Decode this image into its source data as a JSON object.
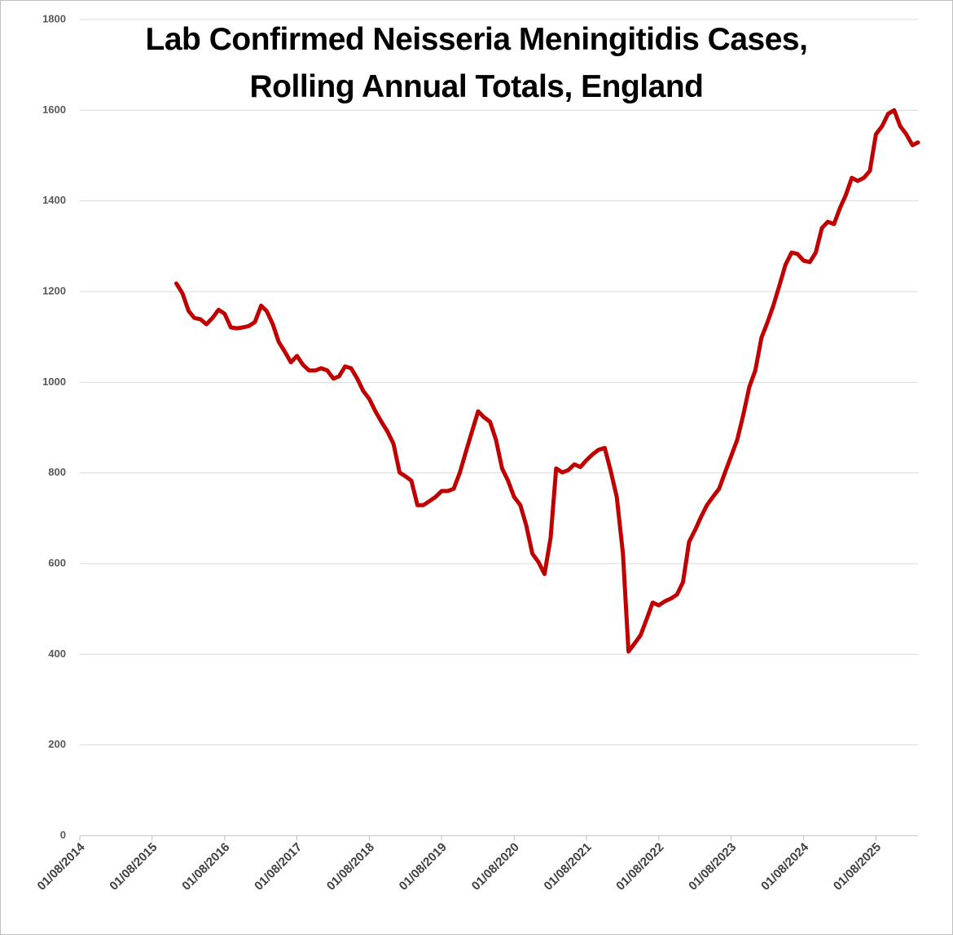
{
  "chart_data": {
    "type": "line",
    "title": "Lab Confirmed Neisseria Meningitidis Cases, Rolling Annual Totals, England",
    "x": [
      "01/12/2015",
      "01/01/2016",
      "01/02/2016",
      "01/03/2016",
      "01/04/2016",
      "01/05/2016",
      "01/06/2016",
      "01/07/2016",
      "01/08/2016",
      "01/09/2016",
      "01/10/2016",
      "01/11/2016",
      "01/12/2016",
      "01/01/2017",
      "01/02/2017",
      "01/03/2017",
      "01/04/2017",
      "01/05/2017",
      "01/06/2017",
      "01/07/2017",
      "01/08/2017",
      "01/09/2017",
      "01/10/2017",
      "01/11/2017",
      "01/12/2017",
      "01/01/2018",
      "01/02/2018",
      "01/03/2018",
      "01/04/2018",
      "01/05/2018",
      "01/06/2018",
      "01/07/2018",
      "01/08/2018",
      "01/09/2018",
      "01/10/2018",
      "01/11/2018",
      "01/12/2018",
      "01/01/2019",
      "01/02/2019",
      "01/03/2019",
      "01/04/2019",
      "01/05/2019",
      "01/06/2019",
      "01/07/2019",
      "01/08/2019",
      "01/09/2019",
      "01/10/2019",
      "01/11/2019",
      "01/12/2019",
      "01/01/2020",
      "01/02/2020",
      "01/03/2020",
      "01/04/2020",
      "01/05/2020",
      "01/06/2020",
      "01/07/2020",
      "01/08/2020",
      "01/09/2020",
      "01/10/2020",
      "01/11/2020",
      "01/12/2020",
      "01/01/2021",
      "01/02/2021",
      "01/03/2021",
      "01/04/2021",
      "01/05/2021",
      "01/06/2021",
      "01/07/2021",
      "01/08/2021",
      "01/09/2021",
      "01/10/2021",
      "01/11/2021",
      "01/12/2021",
      "01/01/2022",
      "01/02/2022",
      "01/03/2022",
      "01/04/2022",
      "01/05/2022",
      "01/06/2022",
      "01/07/2022",
      "01/08/2022",
      "01/09/2022",
      "01/10/2022",
      "01/11/2022",
      "01/12/2022",
      "01/01/2023",
      "01/02/2023",
      "01/03/2023",
      "01/04/2023",
      "01/05/2023",
      "01/06/2023",
      "01/07/2023",
      "01/08/2023",
      "01/09/2023",
      "01/10/2023",
      "01/11/2023",
      "01/12/2023",
      "01/01/2024",
      "01/02/2024",
      "01/03/2024",
      "01/04/2024",
      "01/05/2024",
      "01/06/2024",
      "01/07/2024",
      "01/08/2024",
      "01/09/2024",
      "01/10/2024",
      "01/11/2024",
      "01/12/2024",
      "01/01/2025",
      "01/02/2025",
      "01/03/2025",
      "01/04/2025",
      "01/05/2025",
      "01/06/2025",
      "01/07/2025",
      "01/08/2025",
      "01/09/2025",
      "01/10/2025",
      "01/11/2025",
      "01/12/2025",
      "01/01/2026",
      "01/02/2026",
      "01/03/2026"
    ],
    "series": [
      {
        "color": "#c00000",
        "values": [
          1218,
          1196,
          1157,
          1142,
          1139,
          1128,
          1142,
          1160,
          1151,
          1121,
          1119,
          1121,
          1124,
          1133,
          1169,
          1157,
          1128,
          1089,
          1067,
          1044,
          1058,
          1038,
          1026,
          1026,
          1031,
          1026,
          1008,
          1013,
          1035,
          1031,
          1008,
          981,
          963,
          936,
          913,
          891,
          864,
          801,
          792,
          783,
          729,
          729,
          738,
          747,
          760,
          760,
          765,
          801,
          846,
          891,
          936,
          923,
          913,
          873,
          810,
          783,
          747,
          729,
          684,
          622,
          604,
          577,
          657,
          810,
          801,
          806,
          819,
          813,
          828,
          841,
          851,
          855,
          805,
          747,
          622,
          406,
          424,
          442,
          478,
          514,
          508,
          517,
          523,
          532,
          559,
          648,
          675,
          702,
          729,
          747,
          765,
          801,
          837,
          873,
          927,
          990,
          1026,
          1098,
          1133,
          1169,
          1214,
          1259,
          1286,
          1283,
          1268,
          1265,
          1286,
          1340,
          1354,
          1349,
          1385,
          1412,
          1451,
          1444,
          1451,
          1466,
          1547,
          1565,
          1592,
          1600,
          1565,
          1547,
          1523,
          1529
        ]
      }
    ],
    "xlim": [
      "01/08/2014",
      "01/03/2026"
    ],
    "xticks": [
      "01/08/2014",
      "01/08/2015",
      "01/08/2016",
      "01/08/2017",
      "01/08/2018",
      "01/08/2019",
      "01/08/2020",
      "01/08/2021",
      "01/08/2022",
      "01/08/2023",
      "01/08/2024",
      "01/08/2025"
    ],
    "ylim": [
      0,
      1800
    ],
    "yticks": [
      0,
      200,
      400,
      600,
      800,
      1000,
      1200,
      1400,
      1600,
      1800
    ],
    "grid": true
  }
}
